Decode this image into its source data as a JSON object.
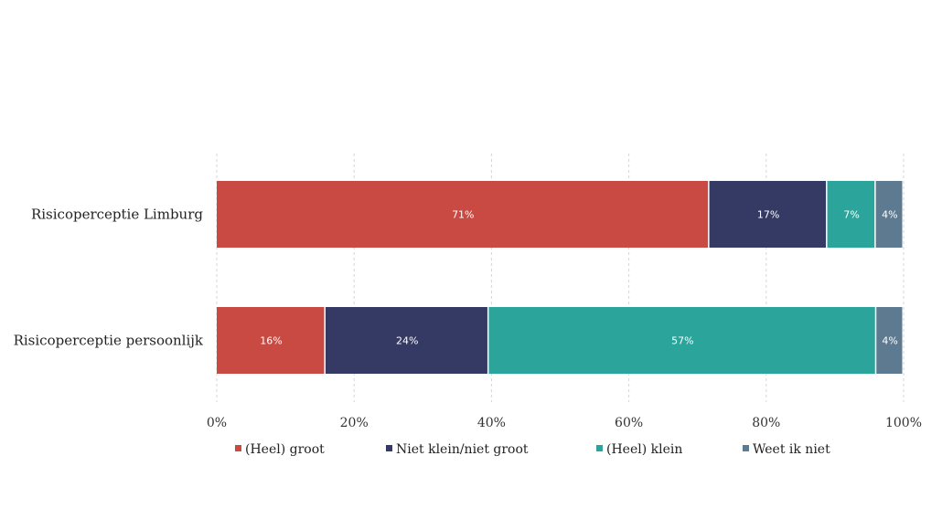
{
  "chart_data": {
    "type": "bar",
    "orientation": "horizontal",
    "stacked": true,
    "categories": [
      "Risicoperceptie Limburg",
      "Risicoperceptie persoonlijk"
    ],
    "series": [
      {
        "name": "(Heel) groot",
        "color": "#c94a42",
        "values": [
          71,
          16
        ],
        "labels": [
          "71%",
          "16%"
        ]
      },
      {
        "name": "Niet klein/niet groot",
        "color": "#353a64",
        "values": [
          17,
          24
        ],
        "labels": [
          "17%",
          "24%"
        ]
      },
      {
        "name": "(Heel) klein",
        "color": "#2ba59b",
        "values": [
          7,
          57
        ],
        "labels": [
          "7%",
          "57%"
        ]
      },
      {
        "name": "Weet ik niet",
        "color": "#5e7a91",
        "values": [
          4,
          4
        ],
        "labels": [
          "4%",
          "4%"
        ]
      }
    ],
    "xlim": [
      0,
      100
    ],
    "xticks": [
      0,
      20,
      40,
      60,
      80,
      100
    ],
    "xtick_labels": [
      "0%",
      "20%",
      "40%",
      "60%",
      "80%",
      "100%"
    ],
    "grid": true,
    "legend_position": "bottom"
  }
}
